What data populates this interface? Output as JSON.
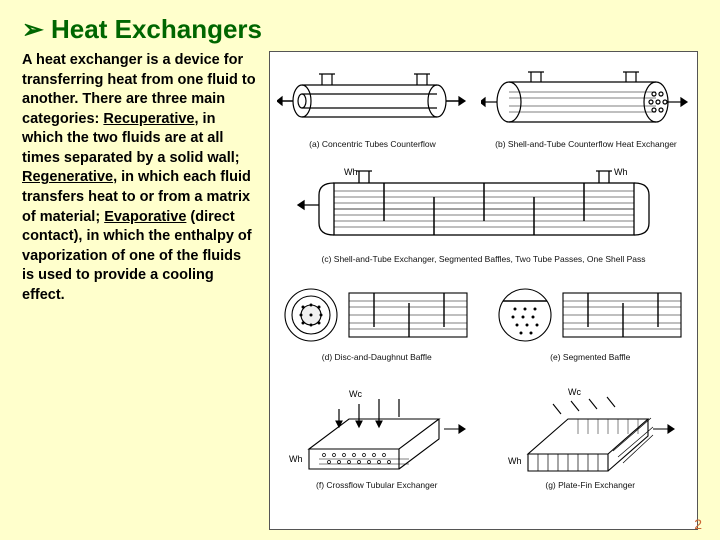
{
  "title": {
    "arrow": "➢",
    "text": "Heat Exchangers",
    "color": "#006600",
    "fontsize": 26
  },
  "body": {
    "fontsize": 14.5,
    "color": "#000000",
    "parts": [
      {
        "t": "A heat exchanger is a device for transferring heat from one fluid to another. There are three main categories: "
      },
      {
        "t": "Recuperative",
        "u": true
      },
      {
        "t": ", in which the two fluids are at all times separated by a solid wall; "
      },
      {
        "t": "Regenerative",
        "u": true
      },
      {
        "t": ", in which each fluid transfers heat to or from a matrix of material; "
      },
      {
        "t": "Evaporative",
        "u": true
      },
      {
        "t": " (direct contact), in which the enthalpy of vaporization of one of the fluids is used to provide a cooling effect."
      }
    ]
  },
  "figures": [
    {
      "id": "a",
      "caption": "(a) Concentric Tubes Counterflow"
    },
    {
      "id": "b",
      "caption": "(b) Shell-and-Tube Counterflow Heat Exchanger"
    },
    {
      "id": "c",
      "caption": "(c) Shell-and-Tube Exchanger, Segmented Baffles, Two Tube Passes, One Shell Pass"
    },
    {
      "id": "d",
      "caption": "(d) Disc-and-Daughnut Baffle"
    },
    {
      "id": "e",
      "caption": "(e) Segmented Baffle"
    },
    {
      "id": "f",
      "caption": "(f) Crossflow Tubular Exchanger"
    },
    {
      "id": "g",
      "caption": "(g) Plate-Fin Exchanger"
    }
  ],
  "labels": {
    "wh": "Wh",
    "wc": "Wc"
  },
  "pagenum": "2",
  "pagenum_color": "#cc6633",
  "background_color": "#ffffcc",
  "figure_bg": "#ffffff",
  "stroke": "#000000"
}
